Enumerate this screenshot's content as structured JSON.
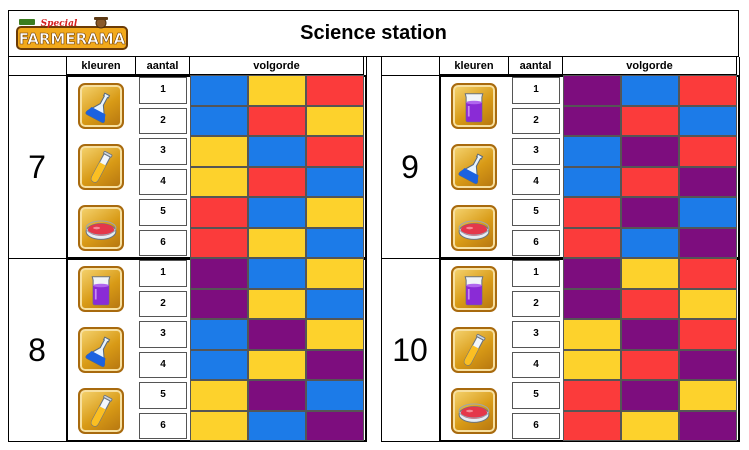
{
  "header": {
    "title": "Science station",
    "logo_text": "FARMERAMA",
    "logo_subtext": "Special"
  },
  "columns": {
    "kleuren": "kleuren",
    "aantal": "aantal",
    "volgorde": "volgorde"
  },
  "colors": {
    "blue": "#1c7be8",
    "yellow": "#fdd22c",
    "red": "#fb3b3b",
    "purple": "#7d0d7e"
  },
  "groups": [
    {
      "number": "7",
      "items": [
        "blue-flask-icon",
        "yellow-tube-icon",
        "red-dish-icon"
      ],
      "rows": [
        {
          "n": "1",
          "seq": [
            "blue",
            "yellow",
            "red"
          ]
        },
        {
          "n": "2",
          "seq": [
            "blue",
            "red",
            "yellow"
          ]
        },
        {
          "n": "3",
          "seq": [
            "yellow",
            "blue",
            "red"
          ]
        },
        {
          "n": "4",
          "seq": [
            "yellow",
            "red",
            "blue"
          ]
        },
        {
          "n": "5",
          "seq": [
            "red",
            "blue",
            "yellow"
          ]
        },
        {
          "n": "6",
          "seq": [
            "red",
            "yellow",
            "blue"
          ]
        }
      ]
    },
    {
      "number": "8",
      "items": [
        "purple-beaker-icon",
        "blue-flask-icon",
        "yellow-tube-icon"
      ],
      "rows": [
        {
          "n": "1",
          "seq": [
            "purple",
            "blue",
            "yellow"
          ]
        },
        {
          "n": "2",
          "seq": [
            "purple",
            "yellow",
            "blue"
          ]
        },
        {
          "n": "3",
          "seq": [
            "blue",
            "purple",
            "yellow"
          ]
        },
        {
          "n": "4",
          "seq": [
            "blue",
            "yellow",
            "purple"
          ]
        },
        {
          "n": "5",
          "seq": [
            "yellow",
            "purple",
            "blue"
          ]
        },
        {
          "n": "6",
          "seq": [
            "yellow",
            "blue",
            "purple"
          ]
        }
      ]
    },
    {
      "number": "9",
      "items": [
        "purple-beaker-icon",
        "blue-flask-icon",
        "red-dish-icon"
      ],
      "rows": [
        {
          "n": "1",
          "seq": [
            "purple",
            "blue",
            "red"
          ]
        },
        {
          "n": "2",
          "seq": [
            "purple",
            "red",
            "blue"
          ]
        },
        {
          "n": "3",
          "seq": [
            "blue",
            "purple",
            "red"
          ]
        },
        {
          "n": "4",
          "seq": [
            "blue",
            "red",
            "purple"
          ]
        },
        {
          "n": "5",
          "seq": [
            "red",
            "purple",
            "blue"
          ]
        },
        {
          "n": "6",
          "seq": [
            "red",
            "blue",
            "purple"
          ]
        }
      ]
    },
    {
      "number": "10",
      "items": [
        "purple-beaker-icon",
        "yellow-tube-icon",
        "red-dish-icon"
      ],
      "rows": [
        {
          "n": "1",
          "seq": [
            "purple",
            "yellow",
            "red"
          ]
        },
        {
          "n": "2",
          "seq": [
            "purple",
            "red",
            "yellow"
          ]
        },
        {
          "n": "3",
          "seq": [
            "yellow",
            "purple",
            "red"
          ]
        },
        {
          "n": "4",
          "seq": [
            "yellow",
            "red",
            "purple"
          ]
        },
        {
          "n": "5",
          "seq": [
            "red",
            "purple",
            "yellow"
          ]
        },
        {
          "n": "6",
          "seq": [
            "red",
            "yellow",
            "purple"
          ]
        }
      ]
    }
  ]
}
